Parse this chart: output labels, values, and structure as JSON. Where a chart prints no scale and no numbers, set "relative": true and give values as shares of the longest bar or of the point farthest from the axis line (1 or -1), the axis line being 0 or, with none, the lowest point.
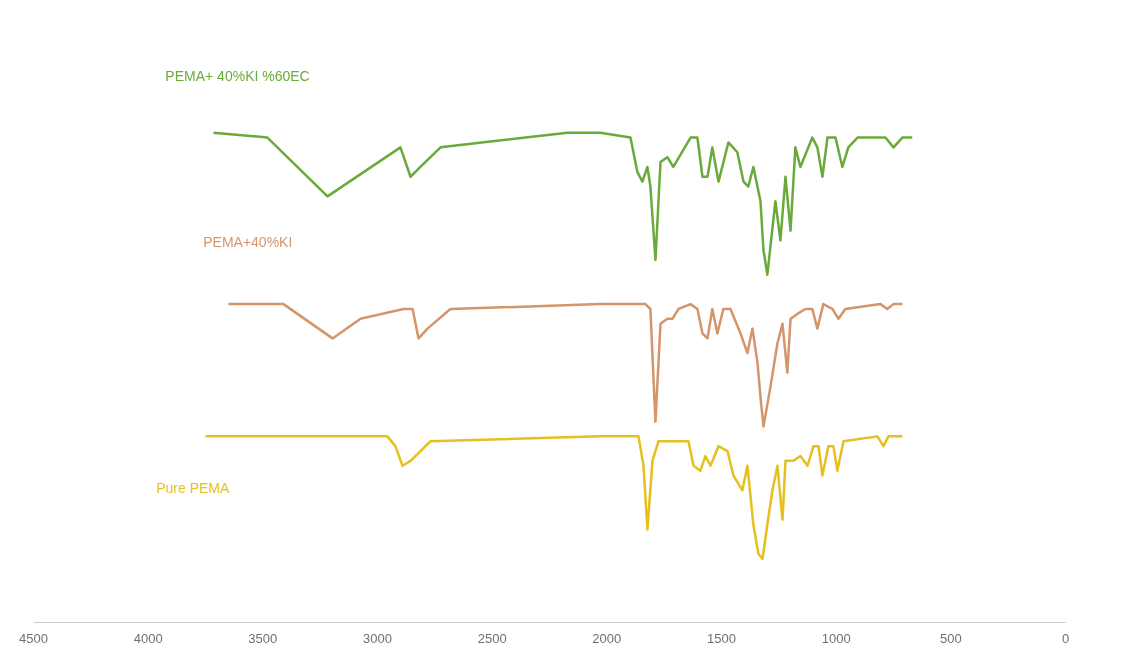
{
  "chart_data": {
    "type": "line",
    "relative": true,
    "xlim": [
      4500,
      0
    ],
    "xticks": [
      4500,
      4000,
      3500,
      3000,
      2500,
      2000,
      1500,
      1000,
      500,
      0
    ],
    "grid": false,
    "marker": "none",
    "line_style": "solid",
    "series": [
      {
        "name": "PEMA+ 40%KI %60EC",
        "color": "#6aaa3a",
        "x": [
          3715,
          3480,
          3218,
          2900,
          2856,
          2813,
          2725,
          2172,
          2028,
          1897,
          1867,
          1845,
          1823,
          1810,
          1788,
          1766,
          1736,
          1710,
          1635,
          1605,
          1583,
          1561,
          1540,
          1513,
          1470,
          1431,
          1404,
          1383,
          1361,
          1330,
          1317,
          1300,
          1265,
          1243,
          1221,
          1199,
          1178,
          1156,
          1104,
          1082,
          1060,
          1038,
          1003,
          973,
          947,
          907,
          785,
          750,
          711,
          668
        ],
        "values": [
          1.0,
          0.99,
          0.87,
          0.97,
          0.91,
          0.93,
          0.97,
          1.0,
          1.0,
          0.99,
          0.92,
          0.9,
          0.93,
          0.89,
          0.74,
          0.94,
          0.95,
          0.93,
          0.99,
          0.99,
          0.91,
          0.91,
          0.97,
          0.9,
          0.98,
          0.96,
          0.9,
          0.89,
          0.93,
          0.86,
          0.76,
          0.71,
          0.86,
          0.78,
          0.91,
          0.8,
          0.97,
          0.93,
          0.99,
          0.97,
          0.91,
          0.99,
          0.99,
          0.93,
          0.97,
          0.99,
          0.99,
          0.97,
          0.99,
          0.99
        ]
      },
      {
        "name": "PEMA+40%KI",
        "color": "#d4956a",
        "x": [
          3650,
          3410,
          3196,
          3074,
          2887,
          2847,
          2821,
          2782,
          2682,
          2028,
          1832,
          1810,
          1788,
          1766,
          1736,
          1714,
          1688,
          1635,
          1605,
          1583,
          1561,
          1540,
          1518,
          1492,
          1461,
          1417,
          1387,
          1365,
          1343,
          1330,
          1317,
          1287,
          1256,
          1234,
          1213,
          1199,
          1169,
          1134,
          1104,
          1082,
          1056,
          1016,
          990,
          960,
          807,
          777,
          750,
          711
        ],
        "values": [
          0.65,
          0.65,
          0.58,
          0.62,
          0.64,
          0.64,
          0.58,
          0.6,
          0.64,
          0.65,
          0.65,
          0.64,
          0.41,
          0.61,
          0.62,
          0.62,
          0.64,
          0.65,
          0.64,
          0.59,
          0.58,
          0.64,
          0.59,
          0.64,
          0.64,
          0.59,
          0.55,
          0.6,
          0.53,
          0.46,
          0.4,
          0.48,
          0.57,
          0.61,
          0.51,
          0.62,
          0.63,
          0.64,
          0.64,
          0.6,
          0.65,
          0.64,
          0.62,
          0.64,
          0.65,
          0.64,
          0.65,
          0.65
        ]
      },
      {
        "name": "Pure PEMA",
        "color": "#e6c020",
        "x": [
          3750,
          2957,
          2922,
          2891,
          2856,
          2769,
          2028,
          1862,
          1840,
          1823,
          1801,
          1775,
          1644,
          1622,
          1592,
          1570,
          1548,
          1513,
          1474,
          1448,
          1409,
          1387,
          1361,
          1339,
          1321,
          1300,
          1278,
          1256,
          1234,
          1221,
          1186,
          1156,
          1125,
          1099,
          1077,
          1060,
          1034,
          1012,
          995,
          968,
          820,
          794,
          772,
          711
        ],
        "values": [
          0.38,
          0.38,
          0.36,
          0.32,
          0.33,
          0.37,
          0.38,
          0.38,
          0.32,
          0.19,
          0.33,
          0.37,
          0.37,
          0.32,
          0.31,
          0.34,
          0.32,
          0.36,
          0.35,
          0.3,
          0.27,
          0.32,
          0.2,
          0.14,
          0.13,
          0.2,
          0.27,
          0.32,
          0.21,
          0.33,
          0.33,
          0.34,
          0.32,
          0.36,
          0.36,
          0.3,
          0.36,
          0.36,
          0.31,
          0.37,
          0.38,
          0.36,
          0.38,
          0.38
        ]
      }
    ]
  }
}
